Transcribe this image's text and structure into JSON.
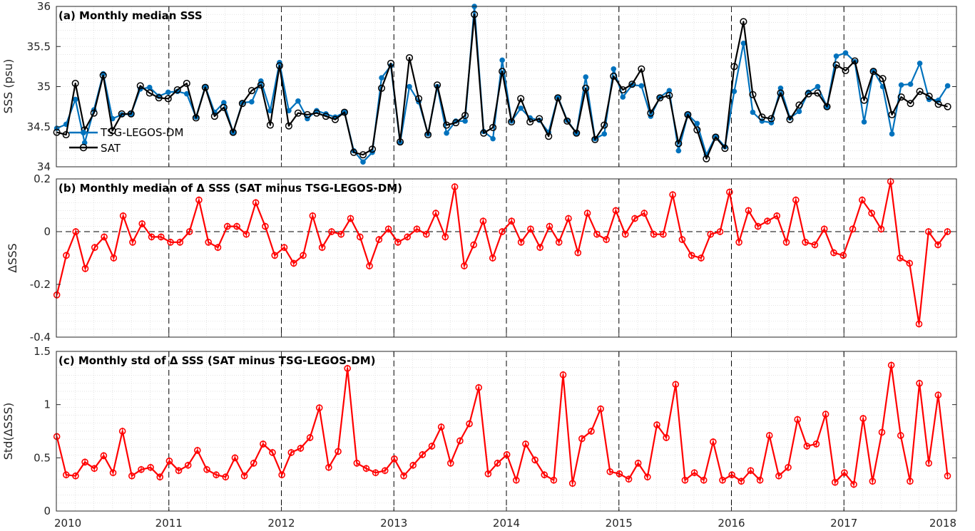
{
  "colors": {
    "tsg": "#0072bd",
    "sat": "#000000",
    "delta": "#ff0000"
  },
  "chart_data": [
    {
      "type": "line",
      "title": "(a) Monthly median SSS",
      "ylabel": "SSS (psu)",
      "xlim": [
        2010,
        2018
      ],
      "ylim": [
        34,
        36
      ],
      "yticks": [
        "34",
        "34.5",
        "35",
        "35.5",
        "36"
      ],
      "xticks": [
        "2010",
        "2011",
        "2012",
        "2013",
        "2014",
        "2015",
        "2016",
        "2017",
        "2018"
      ],
      "grid": true,
      "legend_position": "lower-left",
      "series": [
        {
          "name": "TSG-LEGOS-DM",
          "values": [
            34.48,
            34.53,
            34.84,
            34.3,
            34.71,
            35.16,
            34.6,
            34.65,
            34.66,
            34.97,
            34.99,
            34.88,
            34.93,
            34.94,
            34.91,
            34.62,
            35.0,
            34.68,
            34.8,
            34.43,
            34.8,
            34.81,
            35.07,
            34.7,
            35.3,
            34.7,
            34.82,
            34.6,
            34.7,
            34.66,
            34.62,
            34.68,
            34.2,
            34.06,
            34.18,
            35.11,
            35.26,
            34.3,
            35.0,
            34.81,
            34.41,
            35.0,
            34.42,
            34.57,
            34.57,
            36.0,
            34.44,
            34.35,
            35.33,
            34.57,
            34.73,
            34.61,
            34.58,
            34.43,
            34.87,
            34.58,
            34.42,
            35.12,
            34.35,
            34.41,
            35.22,
            34.87,
            35.02,
            35.01,
            34.63,
            34.87,
            34.95,
            34.2,
            34.65,
            34.54,
            34.15,
            34.38,
            34.25,
            34.94,
            35.54,
            34.68,
            34.57,
            34.55,
            34.98,
            34.61,
            34.69,
            34.93,
            35.0,
            34.75,
            35.38,
            35.42,
            35.31,
            34.56,
            35.2,
            35.0,
            34.41,
            35.02,
            35.03,
            35.29,
            34.84,
            34.83,
            35.01
          ]
        },
        {
          "name": "SAT",
          "values": [
            34.43,
            34.4,
            35.04,
            34.46,
            34.67,
            35.14,
            34.45,
            34.66,
            34.66,
            35.01,
            34.92,
            34.86,
            34.85,
            34.96,
            35.04,
            34.61,
            34.99,
            34.63,
            34.74,
            34.43,
            34.79,
            34.95,
            35.02,
            34.52,
            35.26,
            34.51,
            34.67,
            34.65,
            34.67,
            34.63,
            34.59,
            34.68,
            34.18,
            34.15,
            34.22,
            34.98,
            35.29,
            34.31,
            35.36,
            34.85,
            34.4,
            35.02,
            34.52,
            34.55,
            34.64,
            35.9,
            34.42,
            34.49,
            35.19,
            34.56,
            34.85,
            34.56,
            34.6,
            34.38,
            34.86,
            34.57,
            34.42,
            34.98,
            34.34,
            34.52,
            35.13,
            34.96,
            35.03,
            35.22,
            34.67,
            34.86,
            34.89,
            34.29,
            34.65,
            34.46,
            34.1,
            34.37,
            34.23,
            35.25,
            35.81,
            34.9,
            34.62,
            34.6,
            34.92,
            34.59,
            34.77,
            34.91,
            34.92,
            34.75,
            35.27,
            35.2,
            35.32,
            34.83,
            35.19,
            35.1,
            34.65,
            34.87,
            34.79,
            34.94,
            34.88,
            34.78,
            34.75
          ]
        }
      ]
    },
    {
      "type": "line",
      "title": "(b) Monthly median of Δ SSS (SAT minus TSG-LEGOS-DM)",
      "ylabel": "ΔSSS",
      "xlim": [
        2010,
        2018
      ],
      "ylim": [
        -0.4,
        0.2
      ],
      "yticks": [
        "-0.4",
        "-0.2",
        "0",
        "0.2"
      ],
      "xticks": [
        "2010",
        "2011",
        "2012",
        "2013",
        "2014",
        "2015",
        "2016",
        "2017",
        "2018"
      ],
      "grid": true,
      "series": [
        {
          "name": "",
          "values": [
            -0.24,
            -0.09,
            0.0,
            -0.14,
            -0.06,
            -0.02,
            -0.1,
            0.06,
            -0.04,
            0.03,
            -0.02,
            -0.02,
            -0.04,
            -0.04,
            0.0,
            0.12,
            -0.04,
            -0.06,
            0.02,
            0.02,
            -0.01,
            0.11,
            0.02,
            -0.09,
            -0.06,
            -0.12,
            -0.09,
            0.06,
            -0.06,
            0.0,
            -0.01,
            0.05,
            -0.02,
            -0.13,
            -0.03,
            0.01,
            -0.04,
            -0.02,
            0.01,
            -0.01,
            0.07,
            -0.02,
            0.17,
            -0.13,
            -0.05,
            0.04,
            -0.1,
            0.0,
            0.04,
            -0.04,
            0.01,
            -0.06,
            0.02,
            -0.04,
            0.05,
            -0.08,
            0.07,
            -0.01,
            -0.03,
            0.08,
            -0.01,
            0.05,
            0.07,
            -0.01,
            -0.01,
            0.14,
            -0.03,
            -0.09,
            -0.1,
            -0.01,
            0.0,
            0.15,
            -0.04,
            0.08,
            0.02,
            0.04,
            0.06,
            -0.04,
            0.12,
            -0.04,
            -0.05,
            0.01,
            -0.08,
            -0.09,
            0.01,
            0.12,
            0.07,
            0.01,
            0.19,
            -0.1,
            -0.12,
            -0.35,
            0.0,
            -0.05,
            0.0
          ]
        }
      ]
    },
    {
      "type": "line",
      "title": "(c) Monthly std of Δ SSS (SAT minus TSG-LEGOS-DM)",
      "ylabel": "Std(ΔSSS)",
      "xlim": [
        2010,
        2018
      ],
      "ylim": [
        0,
        1.5
      ],
      "yticks": [
        "0",
        "0.5",
        "1",
        "1.5"
      ],
      "xticks": [
        "2010",
        "2011",
        "2012",
        "2013",
        "2014",
        "2015",
        "2016",
        "2017",
        "2018"
      ],
      "grid": true,
      "series": [
        {
          "name": "",
          "values": [
            0.7,
            0.34,
            0.33,
            0.46,
            0.4,
            0.52,
            0.36,
            0.75,
            0.33,
            0.39,
            0.41,
            0.32,
            0.47,
            0.38,
            0.43,
            0.57,
            0.39,
            0.34,
            0.32,
            0.5,
            0.33,
            0.45,
            0.63,
            0.55,
            0.34,
            0.55,
            0.59,
            0.69,
            0.97,
            0.41,
            0.56,
            1.34,
            0.45,
            0.4,
            0.36,
            0.38,
            0.49,
            0.33,
            0.43,
            0.53,
            0.61,
            0.79,
            0.45,
            0.66,
            0.82,
            1.16,
            0.35,
            0.45,
            0.53,
            0.29,
            0.63,
            0.48,
            0.34,
            0.29,
            1.28,
            0.26,
            0.68,
            0.75,
            0.96,
            0.37,
            0.35,
            0.3,
            0.45,
            0.32,
            0.81,
            0.69,
            1.19,
            0.29,
            0.36,
            0.29,
            0.65,
            0.29,
            0.34,
            0.28,
            0.38,
            0.29,
            0.71,
            0.33,
            0.41,
            0.86,
            0.61,
            0.63,
            0.91,
            0.27,
            0.36,
            0.25,
            0.87,
            0.28,
            0.74,
            1.37,
            0.71,
            0.28,
            1.2,
            0.45,
            1.09,
            0.33
          ]
        }
      ]
    }
  ]
}
